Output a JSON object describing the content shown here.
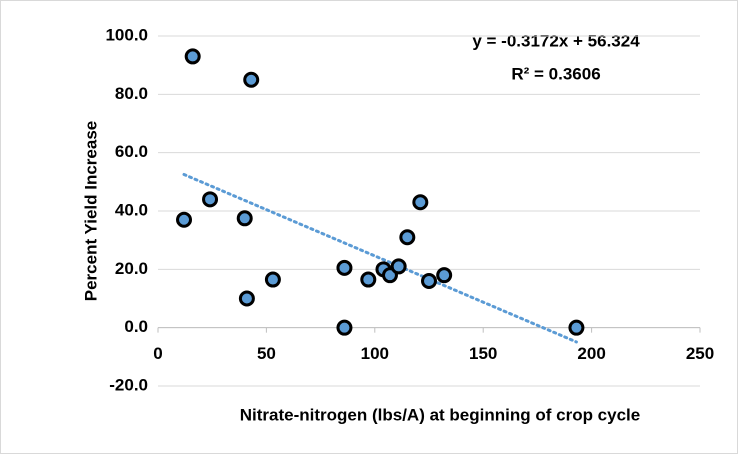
{
  "chart_data": {
    "type": "scatter",
    "x_label": "Nitrate-nitrogen (lbs/A) at beginning of crop cycle",
    "y_label": "Percent Yield Increase",
    "x": [
      12,
      16,
      24,
      40,
      43,
      41,
      53,
      86,
      86,
      97,
      104,
      107,
      111,
      115,
      121,
      125,
      132,
      193
    ],
    "series": [
      {
        "color": "#5b9bd5",
        "values": [
          37,
          93,
          44,
          37.5,
          85,
          10,
          16.5,
          20.5,
          0,
          16.5,
          20,
          18,
          21,
          31,
          43,
          16,
          18,
          0
        ]
      }
    ],
    "trendline": {
      "slope": -0.3172,
      "intercept": 56.324,
      "label": "y = -0.3172x + 56.324",
      "r2": 0.3606,
      "r2_label": "R² = 0.3606"
    },
    "xlim": [
      0,
      250
    ],
    "xticks": [
      0,
      50,
      100,
      150,
      200,
      250
    ],
    "ylim": [
      -20,
      100
    ],
    "yticks": [
      {
        "value": -20,
        "label": "-20.0"
      },
      {
        "value": 0,
        "label": "0.0"
      },
      {
        "value": 20,
        "label": "20.0"
      },
      {
        "value": 40,
        "label": "40.0"
      },
      {
        "value": 60,
        "label": "60.0"
      },
      {
        "value": 80,
        "label": "80.0"
      },
      {
        "value": 100,
        "label": "100.0"
      }
    ],
    "grid": true
  }
}
